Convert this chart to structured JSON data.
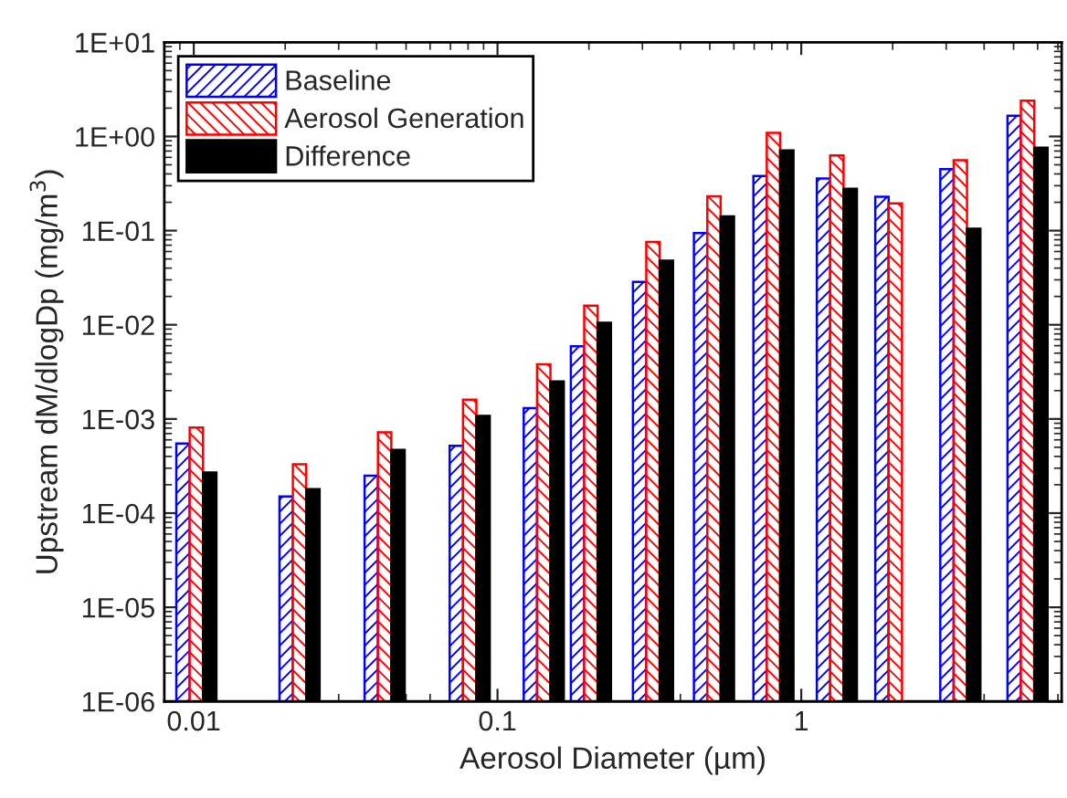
{
  "chart_data": {
    "type": "bar",
    "xlabel": "Aerosol Diameter (µm)",
    "ylabel": "Upstream dM/dlogDp (mg/m$^{3}$)",
    "x": [
      0.0102,
      0.0223,
      0.0425,
      0.081,
      0.142,
      0.203,
      0.325,
      0.516,
      0.81,
      1.31,
      2.04,
      3.34,
      5.56
    ],
    "series": [
      {
        "name": "Baseline",
        "color": "#0000ff",
        "values": [
          0.00055,
          0.00015,
          0.00025,
          0.00052,
          0.0013,
          0.0059,
          0.0285,
          0.094,
          0.38,
          0.357,
          0.229,
          0.45,
          1.66
        ]
      },
      {
        "name": "Aerosol Generation",
        "color": "#ff0000",
        "values": [
          0.00081,
          0.00033,
          0.00072,
          0.0016,
          0.0038,
          0.016,
          0.076,
          0.232,
          1.09,
          0.63,
          0.195,
          0.56,
          2.4
        ]
      },
      {
        "name": "Difference",
        "color": "#000000",
        "values": [
          0.00027,
          0.00018,
          0.00047,
          0.00108,
          0.0025,
          0.0105,
          0.048,
          0.142,
          0.71,
          0.278,
          null,
          0.105,
          0.76
        ]
      }
    ],
    "log": "xy",
    "xlim": [
      0.008,
      7.2
    ],
    "ylim": [
      1e-06,
      10
    ],
    "xticks": [
      0.01,
      0.1,
      1
    ],
    "yticks": [
      {
        "value": 1e-06,
        "label": "1E-06"
      },
      {
        "value": 1e-05,
        "label": "1E-05"
      },
      {
        "value": 0.0001,
        "label": "1E-04"
      },
      {
        "value": 0.001,
        "label": "1E-03"
      },
      {
        "value": 0.01,
        "label": "1E-02"
      },
      {
        "value": 0.1,
        "label": "1E-01"
      },
      {
        "value": 1,
        "label": "1E+00"
      },
      {
        "value": 10,
        "label": "1E+01"
      }
    ],
    "grid": false,
    "legend": "top left"
  }
}
